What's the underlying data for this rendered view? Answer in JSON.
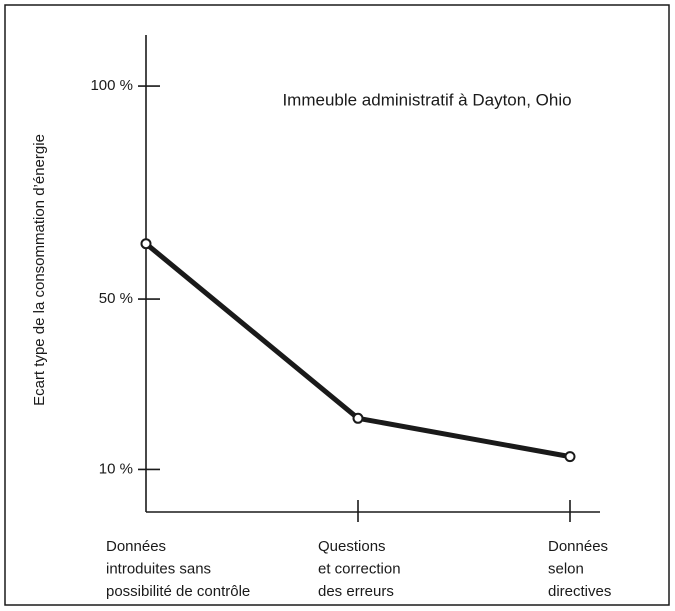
{
  "chart_data": {
    "type": "line",
    "title": "Immeuble administratif à Dayton, Ohio",
    "y_label": "Ecart type de la consommation d’énergie",
    "categories": [
      [
        "Données",
        "introduites sans",
        "possibilité de contrôle"
      ],
      [
        "Questions",
        "et correction",
        "des erreurs"
      ],
      [
        "Données",
        "selon",
        "directives"
      ]
    ],
    "series": [
      {
        "color": "#1a1a1a",
        "values": [
          63,
          22,
          13
        ]
      }
    ],
    "ylim": [
      0,
      112
    ],
    "yticks": [
      {
        "value": 10,
        "label": "10 %"
      },
      {
        "value": 50,
        "label": "50 %"
      },
      {
        "value": 100,
        "label": "100 %"
      }
    ]
  }
}
